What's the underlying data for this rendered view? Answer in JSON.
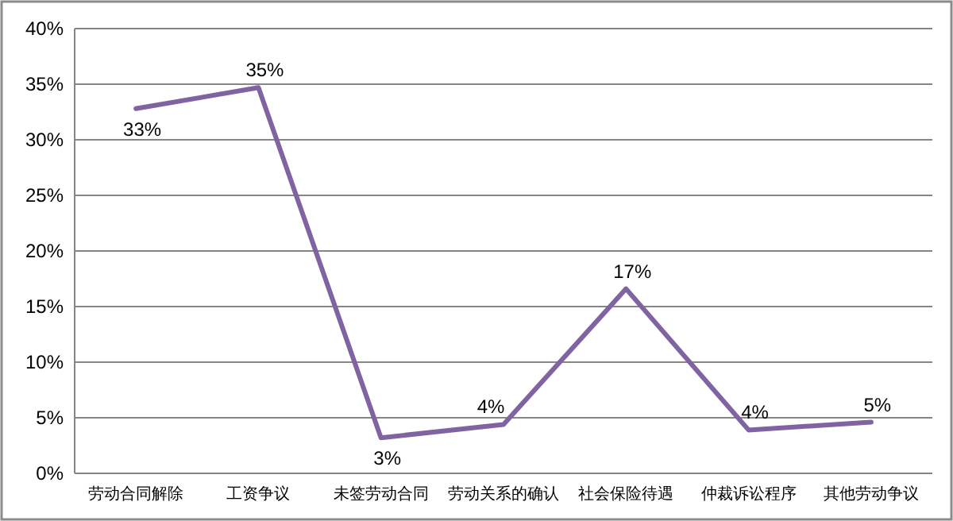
{
  "chart_data": {
    "type": "line",
    "categories": [
      "劳动合同解除",
      "工资争议",
      "未签劳动合同",
      "劳动关系的确认",
      "社会保险待遇",
      "仲裁诉讼程序",
      "其他劳动争议"
    ],
    "series": [
      {
        "color": "#8064a2",
        "values": [
          32.8,
          34.7,
          3.2,
          4.4,
          16.6,
          3.9,
          4.6
        ]
      }
    ],
    "value_labels": [
      "33%",
      "35%",
      "3%",
      "4%",
      "17%",
      "4%",
      "5%"
    ],
    "ylim": [
      0,
      40
    ],
    "yticks": [
      {
        "value": 0,
        "label": "0%"
      },
      {
        "value": 5,
        "label": "5%"
      },
      {
        "value": 10,
        "label": "10%"
      },
      {
        "value": 15,
        "label": "15%"
      },
      {
        "value": 20,
        "label": "20%"
      },
      {
        "value": 25,
        "label": "25%"
      },
      {
        "value": 30,
        "label": "30%"
      },
      {
        "value": 35,
        "label": "35%"
      },
      {
        "value": 40,
        "label": "40%"
      }
    ],
    "grid": "y",
    "marker": "none",
    "line_style": "solid"
  }
}
